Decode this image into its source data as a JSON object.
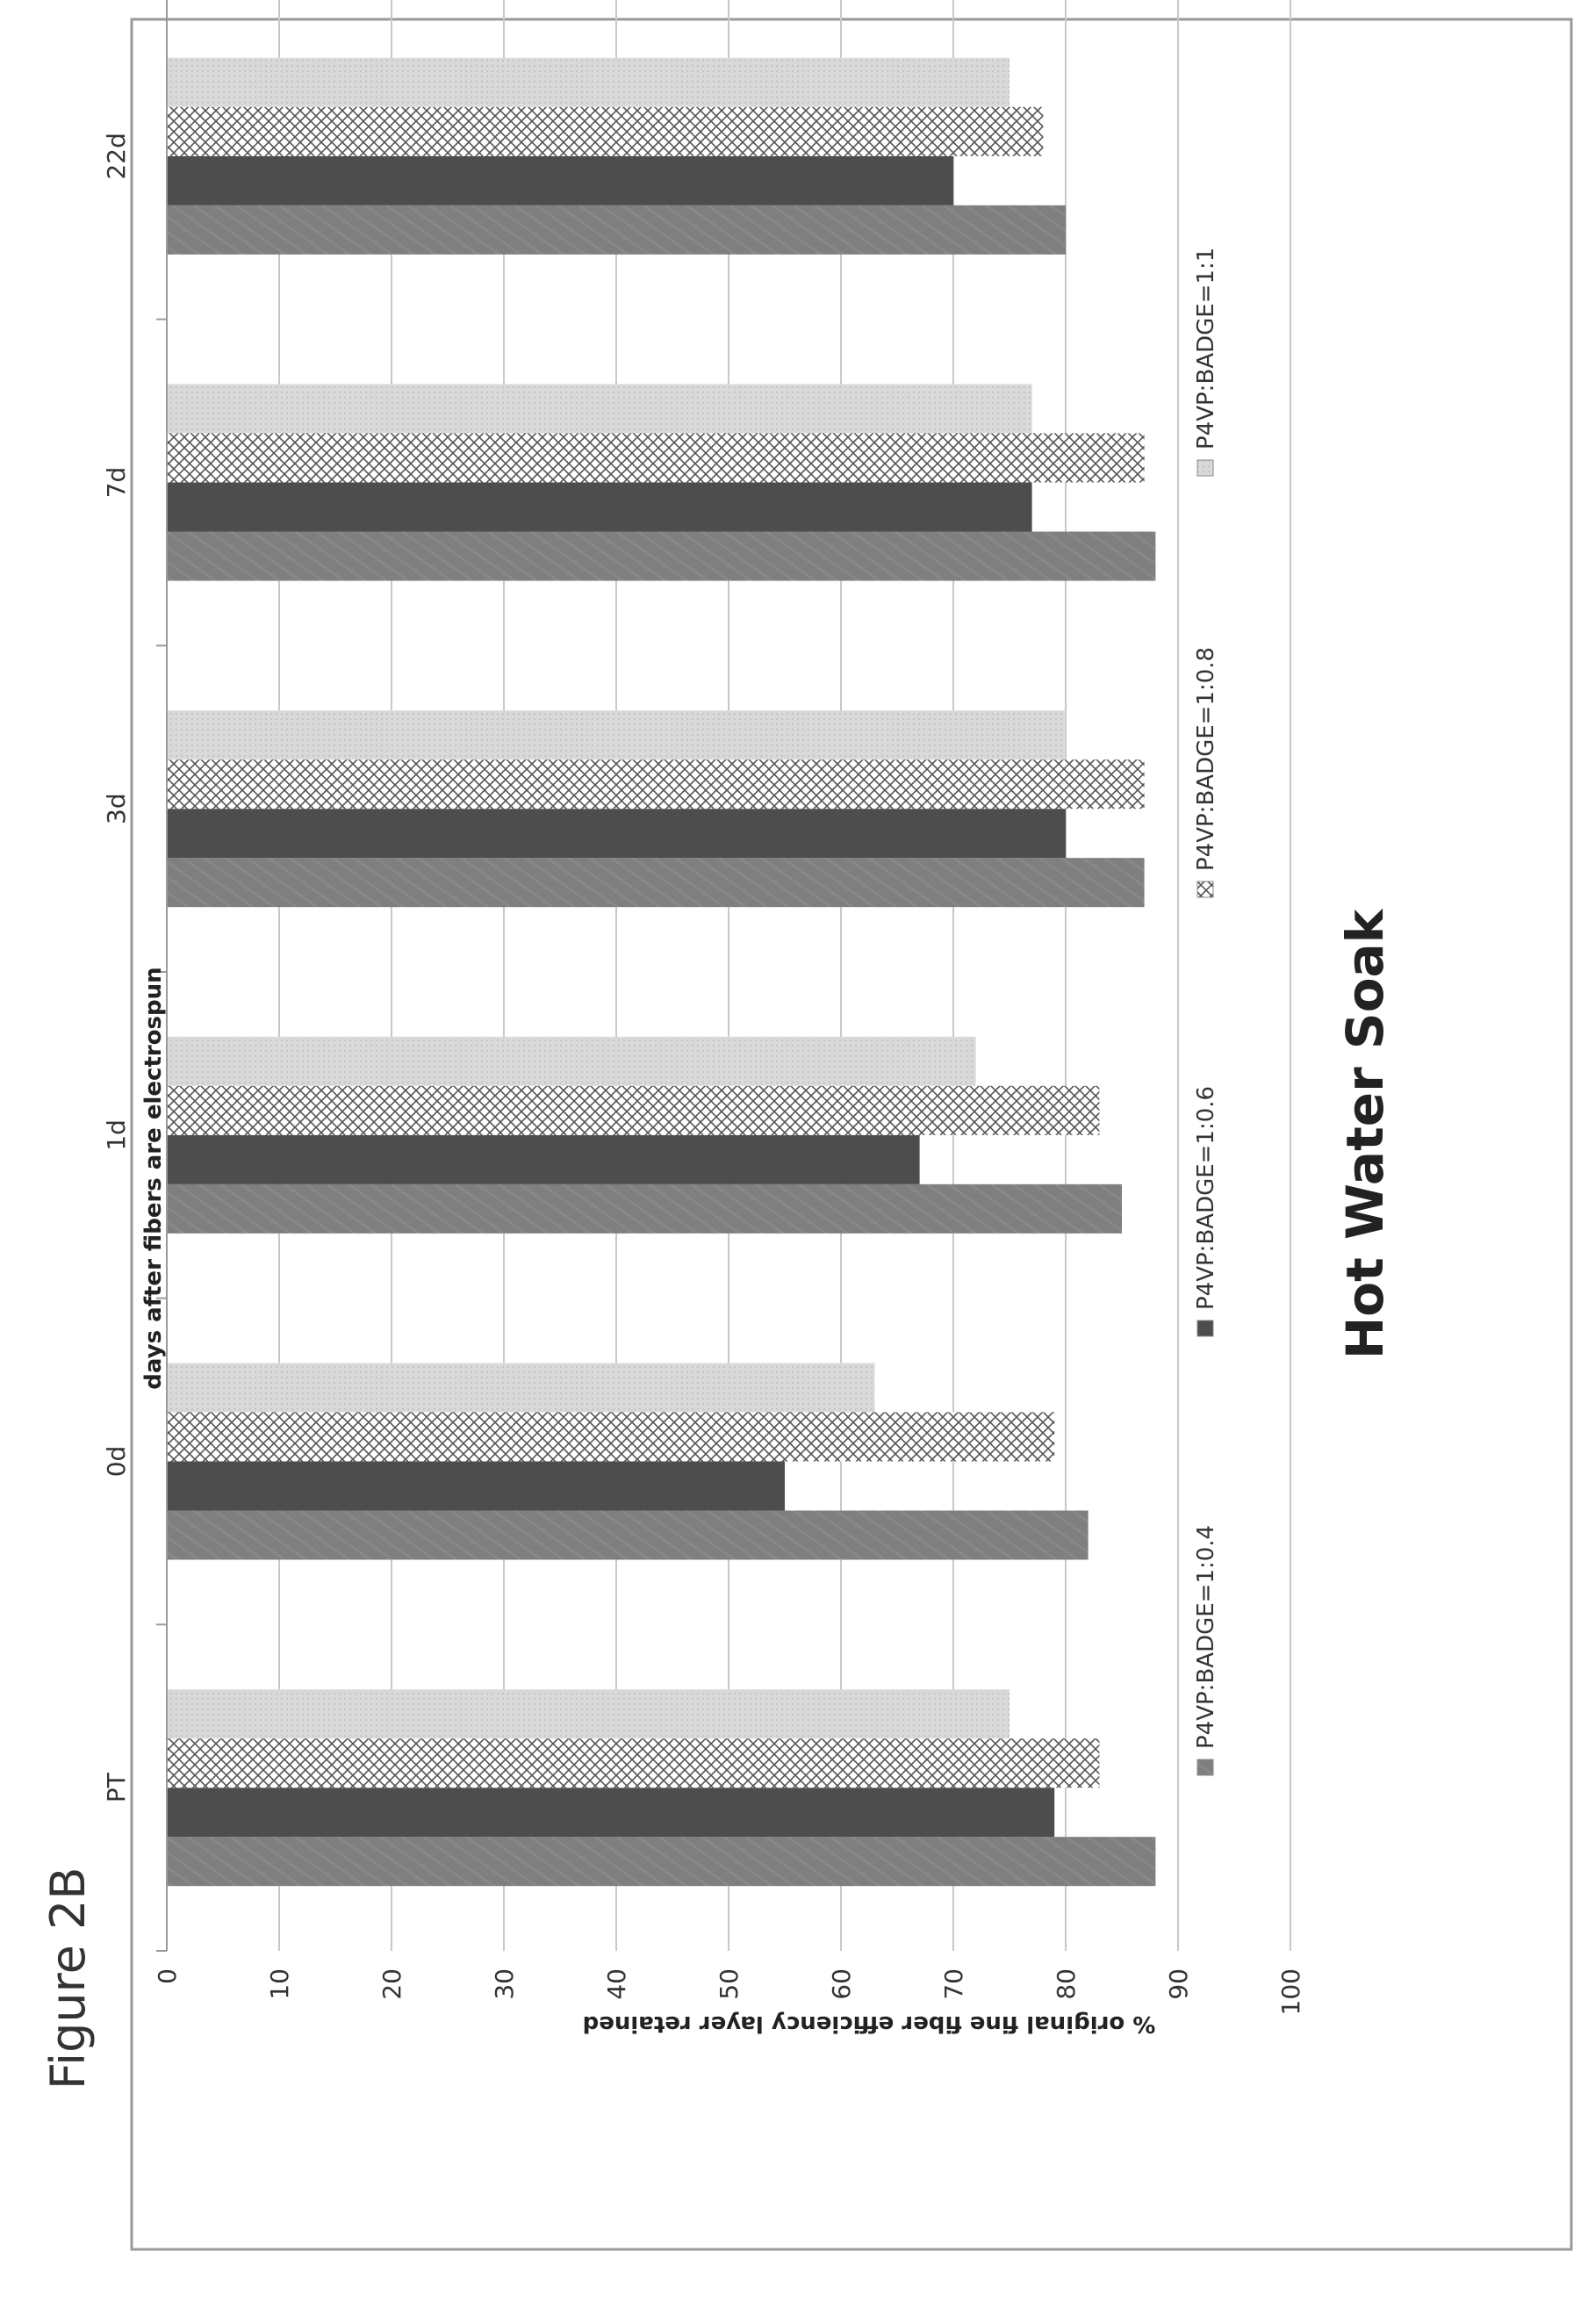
{
  "figure_label": "Figure 2B",
  "chart_data": {
    "type": "bar",
    "orientation": "rotated 90° counter-clockwise (vertical bar chart printed sideways)",
    "title": "Hot Water Soak",
    "xlabel": "days after fibers are electrospun",
    "ylabel": "% original fine fiber efficiency layer retained",
    "categories": [
      "PT",
      "0d",
      "1d",
      "3d",
      "7d",
      "22d"
    ],
    "ylim": [
      0,
      100
    ],
    "yticks": [
      "0",
      "10",
      "20",
      "30",
      "40",
      "50",
      "60",
      "70",
      "80",
      "90",
      "100"
    ],
    "grid": true,
    "legend_position": "top",
    "series": [
      {
        "name": "P4VP:BADGE=1:0.4",
        "values": [
          88,
          82,
          85,
          87,
          88,
          80
        ],
        "color": "#7f7f7f",
        "pattern": "diagonal"
      },
      {
        "name": "P4VP:BADGE=1:0.6",
        "values": [
          79,
          55,
          67,
          80,
          77,
          70
        ],
        "color": "#4d4d4d",
        "pattern": "solid"
      },
      {
        "name": "P4VP:BADGE=1:0.8",
        "values": [
          83,
          79,
          83,
          87,
          87,
          78
        ],
        "color": "#9a9a9a",
        "pattern": "crosshatch"
      },
      {
        "name": "P4VP:BADGE=1:1",
        "values": [
          75,
          63,
          72,
          80,
          77,
          75
        ],
        "color": "#d6d6d6",
        "pattern": "fine-dots"
      }
    ]
  }
}
